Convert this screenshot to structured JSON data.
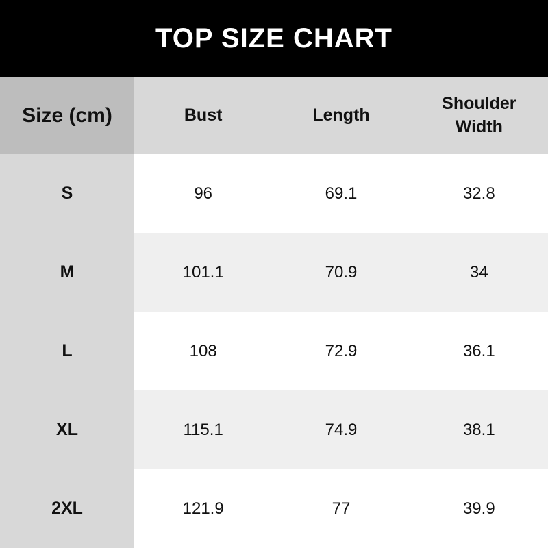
{
  "title": "TOP SIZE CHART",
  "chart_data": {
    "type": "table",
    "title": "TOP SIZE CHART",
    "columns": [
      "Size (cm)",
      "Bust",
      "Length",
      "Shoulder Width"
    ],
    "rows": [
      {
        "size": "S",
        "values": [
          "96",
          "69.1",
          "32.8"
        ]
      },
      {
        "size": "M",
        "values": [
          "101.1",
          "70.9",
          "34"
        ]
      },
      {
        "size": "L",
        "values": [
          "108",
          "72.9",
          "36.1"
        ]
      },
      {
        "size": "XL",
        "values": [
          "115.1",
          "74.9",
          "38.1"
        ]
      },
      {
        "size": "2XL",
        "values": [
          "121.9",
          "77",
          "39.9"
        ]
      }
    ]
  },
  "colors": {
    "banner_bg": "#000000",
    "banner_text": "#ffffff",
    "size_header_bg": "#bdbdbd",
    "header_row_bg": "#d8d8d8",
    "first_column_bg": "#d8d8d8",
    "row_white_bg": "#ffffff",
    "row_alt_bg": "#efefef",
    "text": "#111111"
  }
}
